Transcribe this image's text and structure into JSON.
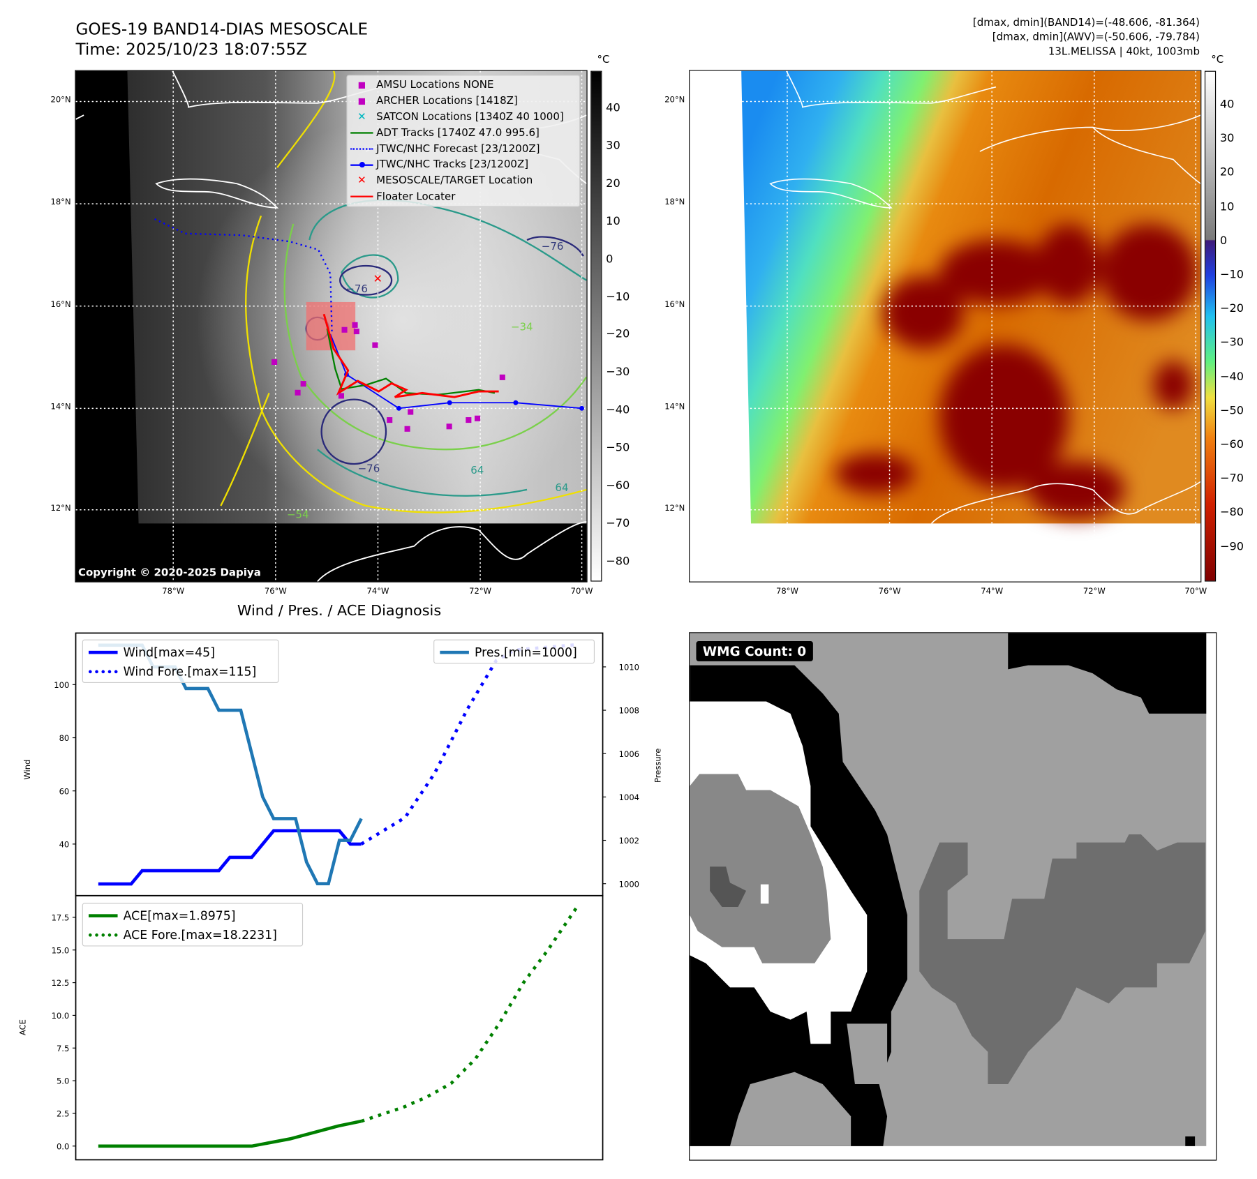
{
  "header": {
    "title": "GOES-19 BAND14-DIAS MESOSCALE",
    "time": "Time: 2025/10/23 18:07:55Z",
    "stats_band14": "[dmax, dmin](BAND14)=(-48.606, -81.364)",
    "stats_awv": "[dmax, dmin](AWV)=(-50.606, -79.784)",
    "storm": "13L.MELISSA | 40kt, 1003mb"
  },
  "map_left": {
    "unit": "°C",
    "lat_labels": [
      "20°N",
      "18°N",
      "16°N",
      "14°N",
      "12°N"
    ],
    "lon_labels": [
      "78°W",
      "76°W",
      "74°W",
      "72°W",
      "70°W"
    ],
    "colorbar_ticks": [
      "40",
      "30",
      "20",
      "10",
      "0",
      "−10",
      "−20",
      "−30",
      "−40",
      "−50",
      "−60",
      "−70",
      "−80"
    ],
    "copyright": "Copyright © 2020-2025 Dapiya",
    "contour_labels": [
      "−76",
      "−76",
      "−76",
      "64",
      "64",
      "−54",
      "−34"
    ],
    "legend": [
      {
        "label": "AMSU Locations NONE",
        "symbol": "square",
        "color": "#c000c0"
      },
      {
        "label": "ARCHER Locations [1418Z]",
        "symbol": "square",
        "color": "#c000c0"
      },
      {
        "label": "SATCON Locations [1340Z 40 1000]",
        "symbol": "x",
        "color": "#00b8c0"
      },
      {
        "label": "ADT Tracks [1740Z 47.0 995.6]",
        "symbol": "line",
        "color": "#008000"
      },
      {
        "label": "JTWC/NHC Forecast [23/1200Z]",
        "symbol": "dotted",
        "color": "#0000ff"
      },
      {
        "label": "JTWC/NHC Tracks [23/1200Z]",
        "symbol": "line-dot",
        "color": "#0000ff"
      },
      {
        "label": "MESOSCALE/TARGET Location",
        "symbol": "x",
        "color": "#ff0000"
      },
      {
        "label": "Floater Locater",
        "symbol": "line",
        "color": "#ff0000"
      }
    ]
  },
  "map_right": {
    "unit": "°C",
    "lat_labels": [
      "20°N",
      "18°N",
      "16°N",
      "14°N",
      "12°N"
    ],
    "lon_labels": [
      "78°W",
      "76°W",
      "74°W",
      "72°W",
      "70°W"
    ],
    "colorbar_ticks": [
      "40",
      "30",
      "20",
      "10",
      "0",
      "−10",
      "−20",
      "−30",
      "−40",
      "−50",
      "−60",
      "−70",
      "−80",
      "−90"
    ]
  },
  "wmg": {
    "label": "WMG Count: 0"
  },
  "chart_data": [
    {
      "type": "line",
      "title": "Wind / Pres. / ACE Diagnosis",
      "ylabel": "Wind",
      "y2label": "Pressure",
      "xlim": [
        -2.06,
        46.03
      ],
      "ylim": [
        20.6,
        119.4
      ],
      "y2lim": [
        999.45,
        1011.56
      ],
      "yticks": [
        40,
        60,
        80,
        100
      ],
      "y2ticks": [
        1000,
        1002,
        1004,
        1006,
        1008,
        1010
      ],
      "legend_left": [
        "Wind[max=45]",
        "Wind Fore.[max=115]"
      ],
      "legend_right": [
        "Pres.[min=1000]"
      ],
      "series": [
        {
          "name": "Wind[max=45]",
          "axis": "left",
          "style": "solid",
          "color": "#0000ff",
          "x": [
            0,
            3,
            4,
            11,
            12,
            14,
            16,
            22,
            23,
            24
          ],
          "y": [
            25,
            25,
            30,
            30,
            35,
            35,
            45,
            45,
            40,
            40
          ]
        },
        {
          "name": "Wind Fore.[max=115]",
          "axis": "left",
          "style": "dotted",
          "color": "#0000ff",
          "x": [
            24,
            28,
            30.7,
            33.7,
            36.3,
            38,
            43.6
          ],
          "y": [
            40,
            50,
            66.7,
            90.9,
            109,
            113,
            115
          ]
        },
        {
          "name": "Pres.[min=1000]",
          "axis": "right",
          "style": "solid",
          "color": "#1f77b4",
          "x": [
            0,
            4,
            5,
            7,
            8,
            10,
            11,
            13,
            15,
            16,
            18,
            19,
            20,
            21,
            22,
            23,
            24
          ],
          "y": [
            1011,
            1011,
            1010,
            1010,
            1009,
            1009,
            1008,
            1008,
            1004,
            1003,
            1003,
            1001,
            1000,
            1000,
            1002,
            1002,
            1003
          ]
        }
      ]
    },
    {
      "type": "line",
      "ylabel": "ACE",
      "xlim": [
        -2.06,
        46.03
      ],
      "ylim": [
        -1.05,
        19.16
      ],
      "yticks": [
        0.0,
        2.5,
        5.0,
        7.5,
        10.0,
        12.5,
        15.0,
        17.5
      ],
      "ytick_labels": [
        "0.0",
        "2.5",
        "5.0",
        "7.5",
        "10.0",
        "12.5",
        "15.0",
        "17.5"
      ],
      "legend": [
        "ACE[max=1.8975]",
        "ACE Fore.[max=18.2231]"
      ],
      "series": [
        {
          "name": "ACE[max=1.8975]",
          "style": "solid",
          "color": "#008000",
          "x": [
            0,
            14,
            17.5,
            21.9,
            24
          ],
          "y": [
            0,
            0,
            0.55,
            1.54,
            1.9
          ]
        },
        {
          "name": "ACE Fore.[max=18.2231]",
          "style": "dotted",
          "color": "#008000",
          "x": [
            24,
            27.8,
            30,
            32.2,
            34.4,
            36.6,
            38.8,
            41,
            43.6
          ],
          "y": [
            1.9,
            2.96,
            3.76,
            4.8,
            6.65,
            9.4,
            12.5,
            14.97,
            18.2
          ]
        }
      ]
    }
  ]
}
